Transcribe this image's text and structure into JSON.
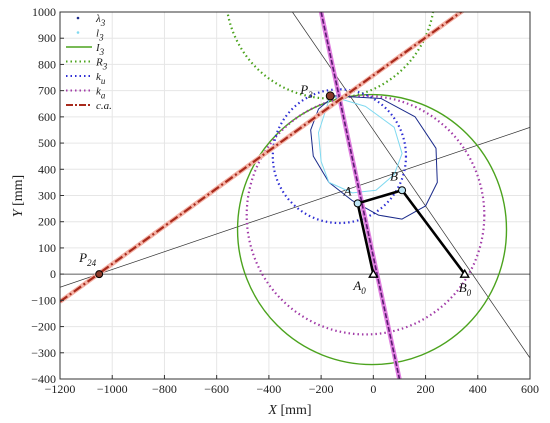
{
  "chart_data": {
    "type": "line",
    "title": "",
    "xlabel": {
      "main": "X",
      "unit": " [mm]"
    },
    "ylabel": {
      "main": "Y",
      "unit": " [mm]"
    },
    "xlim": [
      -1200,
      600
    ],
    "ylim": [
      -400,
      1000
    ],
    "xticks": [
      -1200,
      -1000,
      -800,
      -600,
      -400,
      -200,
      0,
      200,
      400,
      600
    ],
    "yticks": [
      -400,
      -300,
      -200,
      -100,
      0,
      100,
      200,
      300,
      400,
      500,
      600,
      700,
      800,
      900,
      1000
    ],
    "grid": true,
    "legend_position": "top-left",
    "legend": [
      {
        "key": "lambda3",
        "base": "λ",
        "sub": "3",
        "style": "dots",
        "color": "#1a2a8a"
      },
      {
        "key": "l3",
        "base": "l",
        "sub": "3",
        "style": "dots",
        "color": "#7fd9f0"
      },
      {
        "key": "I3",
        "base": "I",
        "sub": "3",
        "style": "solid",
        "color": "#4ca31e"
      },
      {
        "key": "R3",
        "base": "R",
        "sub": "3",
        "style": "dotted",
        "color": "#4ca31e"
      },
      {
        "key": "ku",
        "base": "k",
        "sub": "u",
        "style": "dotted",
        "color": "#2f2fd4"
      },
      {
        "key": "ka",
        "base": "k",
        "sub": "a",
        "style": "dotted",
        "color": "#a23ca8"
      },
      {
        "key": "ca",
        "base": "c.a.",
        "sub": "",
        "style": "dashdot",
        "color": "#a82a1c"
      }
    ],
    "points": {
      "A": [
        -60,
        270
      ],
      "B": [
        110,
        320
      ],
      "A0": [
        0,
        0
      ],
      "B0": [
        350,
        0
      ],
      "P3": [
        -165,
        680
      ],
      "P24": [
        -1050,
        0
      ]
    },
    "point_labels": [
      {
        "key": "A",
        "base": "A",
        "sub": ""
      },
      {
        "key": "B",
        "base": "B",
        "sub": ""
      },
      {
        "key": "A0",
        "base": "A",
        "sub": "0"
      },
      {
        "key": "B0",
        "base": "B",
        "sub": "0"
      },
      {
        "key": "P3",
        "base": "P",
        "sub": "3"
      },
      {
        "key": "P24",
        "base": "P",
        "sub": "24"
      }
    ],
    "circles": {
      "I3": {
        "center": [
          -5,
          170
        ],
        "radius": 515
      },
      "R3": {
        "center": [
          -165,
          1070
        ],
        "radius": 400
      },
      "ka": {
        "center": [
          -30,
          225
        ],
        "radius": 455
      },
      "ku": {
        "center": [
          -130,
          450
        ],
        "radius": 255
      }
    },
    "lines": {
      "ca": [
        [
          -1200,
          -105
        ],
        [
          600,
          1190
        ]
      ],
      "ka_line": [
        [
          -200,
          1000
        ],
        [
          100,
          -400
        ]
      ],
      "P24_line": [
        [
          -1200,
          -50
        ],
        [
          600,
          560
        ]
      ],
      "P3_B0": [
        [
          -310,
          1000
        ],
        [
          600,
          -320
        ]
      ]
    },
    "lambda3": [
      [
        -150,
        680
      ],
      [
        30,
        670
      ],
      [
        160,
        600
      ],
      [
        240,
        480
      ],
      [
        245,
        350
      ],
      [
        200,
        260
      ],
      [
        110,
        210
      ],
      [
        20,
        225
      ],
      [
        -80,
        280
      ],
      [
        -170,
        350
      ],
      [
        -230,
        450
      ],
      [
        -240,
        550
      ],
      [
        -210,
        630
      ],
      [
        -150,
        680
      ]
    ],
    "l3": [
      [
        -165,
        680
      ],
      [
        -30,
        640
      ],
      [
        80,
        560
      ],
      [
        110,
        460
      ],
      [
        80,
        380
      ],
      [
        10,
        320
      ],
      [
        -80,
        310
      ],
      [
        -170,
        350
      ],
      [
        -200,
        430
      ],
      [
        -210,
        540
      ],
      [
        -165,
        680
      ]
    ],
    "linkage": [
      [
        0,
        0
      ],
      [
        -60,
        270
      ],
      [
        110,
        320
      ],
      [
        350,
        0
      ]
    ]
  }
}
